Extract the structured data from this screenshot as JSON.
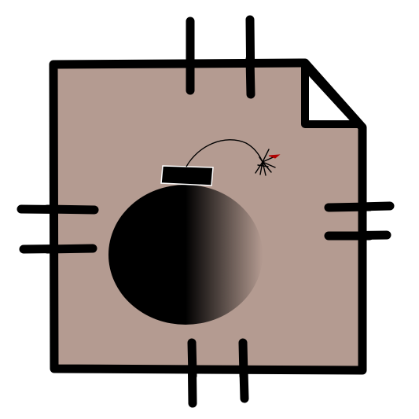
{
  "icon": {
    "name": "file-bomb-icon",
    "colors": {
      "background": "#ffffff",
      "page_fill": "#b49b91",
      "outline": "#000000",
      "bomb_body": "#000000",
      "bomb_highlight": "#b49b91",
      "bomb_cap": "#000000",
      "fuse": "#000000",
      "spark_accent": "#b00000"
    },
    "parts": [
      "document-page",
      "folded-corner",
      "connector-pins",
      "bomb",
      "fuse",
      "spark"
    ]
  }
}
